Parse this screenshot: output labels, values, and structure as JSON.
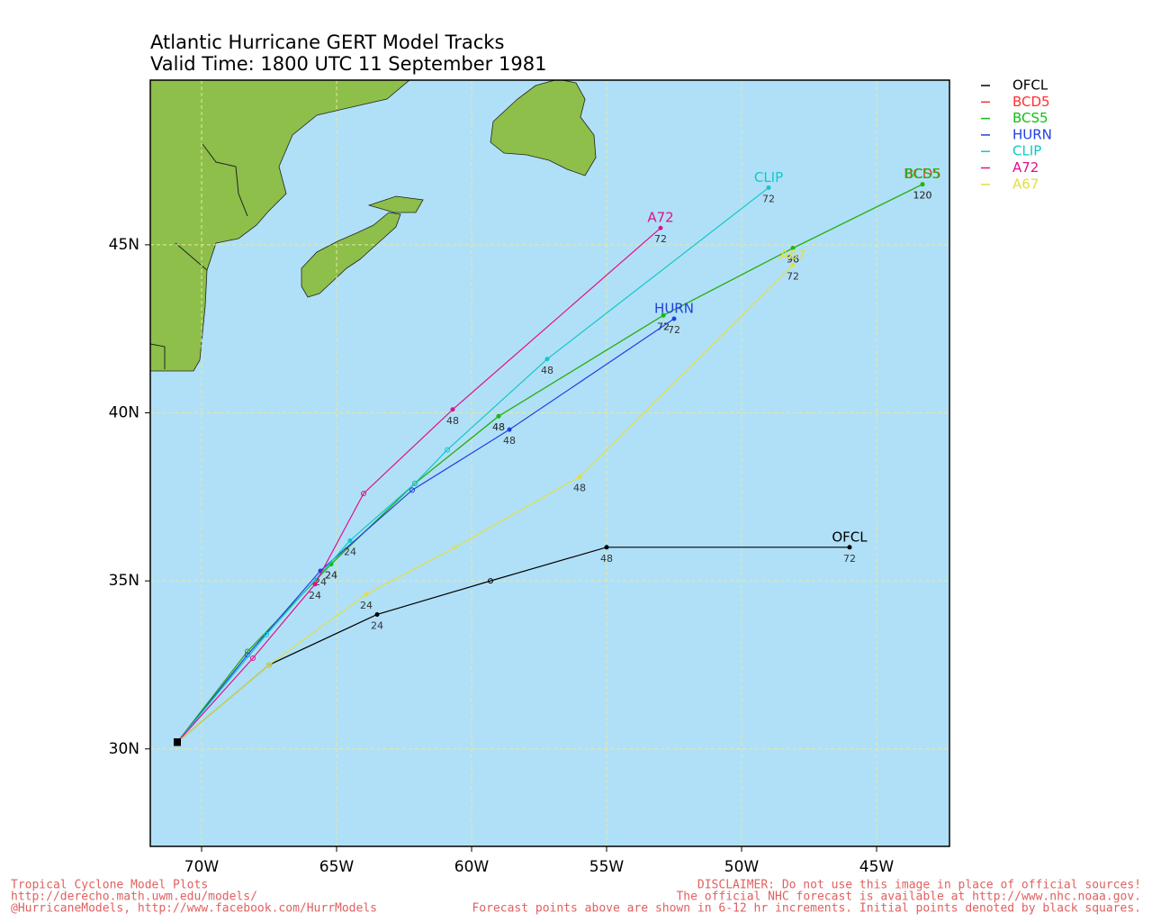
{
  "chart_data": {
    "type": "line",
    "title": "Atlantic Hurricane GERT Model Tracks",
    "subtitle": "Valid Time: 1800 UTC 11 September 1981",
    "xlim": [
      -71.9,
      -42.3
    ],
    "ylim": [
      27.1,
      49.9
    ],
    "xticks": [
      {
        "value": -70,
        "label": "70W"
      },
      {
        "value": -65,
        "label": "65W"
      },
      {
        "value": -60,
        "label": "60W"
      },
      {
        "value": -55,
        "label": "55W"
      },
      {
        "value": -50,
        "label": "50W"
      },
      {
        "value": -45,
        "label": "45W"
      }
    ],
    "yticks": [
      {
        "value": 30,
        "label": "30N"
      },
      {
        "value": 35,
        "label": "35N"
      },
      {
        "value": 40,
        "label": "40N"
      },
      {
        "value": 45,
        "label": "45N"
      }
    ],
    "grid": true,
    "series": [
      {
        "name": "OFCL",
        "color": "#000000",
        "x": [
          -70.9,
          -67.5,
          -63.5,
          -59.3,
          -55.0,
          -46.0
        ],
        "values": [
          30.2,
          32.5,
          34.0,
          35.0,
          36.0,
          36.0
        ],
        "hour_labels": [
          null,
          null,
          24,
          null,
          48,
          72
        ]
      },
      {
        "name": "BCD5",
        "color": "#ff3030",
        "x": [
          -70.9,
          -68.3,
          -65.2,
          -62.1,
          -59.0,
          -52.9,
          -48.1,
          -43.3
        ],
        "values": [
          30.2,
          32.9,
          35.5,
          37.9,
          39.9,
          42.9,
          44.9,
          46.8
        ],
        "hour_labels": [
          null,
          null,
          24,
          null,
          48,
          72,
          96,
          120
        ]
      },
      {
        "name": "BCS5",
        "color": "#10c010",
        "x": [
          -70.9,
          -68.3,
          -65.2,
          -62.1,
          -59.0,
          -52.9,
          -48.1,
          -43.3
        ],
        "values": [
          30.2,
          32.9,
          35.5,
          37.9,
          39.9,
          42.9,
          44.9,
          46.8
        ],
        "hour_labels": [
          null,
          null,
          24,
          null,
          48,
          72,
          96,
          120
        ]
      },
      {
        "name": "HURN",
        "color": "#2040e0",
        "x": [
          -70.9,
          -68.3,
          -65.6,
          -62.2,
          -58.6,
          -52.5
        ],
        "values": [
          30.2,
          32.8,
          35.3,
          37.7,
          39.5,
          42.8
        ],
        "hour_labels": [
          null,
          null,
          24,
          null,
          48,
          72
        ]
      },
      {
        "name": "CLIP",
        "color": "#10c8c8",
        "x": [
          -70.9,
          -67.6,
          -64.5,
          -62.1,
          -60.9,
          -57.2,
          -49.0
        ],
        "values": [
          30.2,
          33.4,
          36.2,
          37.9,
          38.9,
          41.6,
          46.7
        ],
        "hour_labels": [
          null,
          null,
          24,
          null,
          null,
          48,
          72
        ]
      },
      {
        "name": "A72",
        "color": "#e0108c",
        "x": [
          -70.9,
          -68.1,
          -65.8,
          -64.0,
          -60.7,
          -53.0
        ],
        "values": [
          30.2,
          32.7,
          34.9,
          37.6,
          40.1,
          45.5
        ],
        "hour_labels": [
          null,
          null,
          24,
          null,
          48,
          72
        ]
      },
      {
        "name": "A67",
        "color": "#e0e040",
        "x": [
          -70.9,
          -67.5,
          -63.9,
          -60.6,
          -56.0,
          -48.1
        ],
        "values": [
          30.2,
          32.5,
          34.6,
          36.0,
          38.1,
          44.4
        ],
        "hour_labels": [
          null,
          null,
          24,
          null,
          48,
          72
        ]
      }
    ]
  },
  "footer": {
    "left": [
      "Tropical Cyclone Model Plots",
      "http://derecho.math.uwm.edu/models/",
      "@HurricaneModels, http://www.facebook.com/HurrModels"
    ],
    "right": [
      "DISCLAIMER: Do not use this image in place of official sources!",
      "The official NHC forecast is available at http://www.nhc.noaa.gov.",
      "Forecast points above are shown in 6-12 hr increments. Initial points denoted by black squares."
    ]
  }
}
